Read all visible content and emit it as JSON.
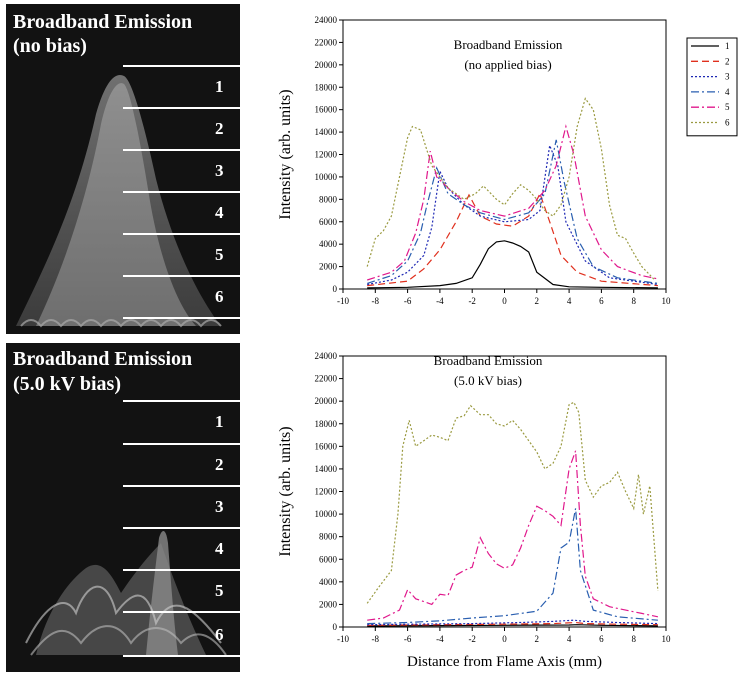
{
  "left_panels": [
    {
      "title_line1": "Broadband Emission",
      "title_line2": "(no bias)",
      "regions": [
        "1",
        "2",
        "3",
        "4",
        "5",
        "6"
      ]
    },
    {
      "title_line1": "Broadband Emission",
      "title_line2": "(5.0 kV bias)",
      "regions": [
        "1",
        "2",
        "3",
        "4",
        "5",
        "6"
      ]
    }
  ],
  "chart_data": [
    {
      "type": "line",
      "title_line1": "Broadband Emission",
      "title_line2": "(no applied bias)",
      "ylabel": "Intensity (arb. units)",
      "xlabel": "",
      "xlim": [
        -10,
        10
      ],
      "ylim": [
        0,
        24000
      ],
      "xticks": [
        -10,
        -8,
        -6,
        -4,
        -2,
        0,
        2,
        4,
        6,
        8,
        10
      ],
      "yticks": [
        0,
        2000,
        4000,
        6000,
        8000,
        10000,
        12000,
        14000,
        16000,
        18000,
        20000,
        22000,
        24000
      ],
      "legend": "top-right",
      "series": [
        {
          "name": "1",
          "color": "#000000",
          "dash": "none",
          "points": [
            [
              -8.5,
              100
            ],
            [
              -6,
              150
            ],
            [
              -4,
              300
            ],
            [
              -3,
              500
            ],
            [
              -2,
              1000
            ],
            [
              -1.5,
              2200
            ],
            [
              -1,
              3600
            ],
            [
              -0.5,
              4200
            ],
            [
              0,
              4300
            ],
            [
              0.5,
              4100
            ],
            [
              1,
              3800
            ],
            [
              1.5,
              3300
            ],
            [
              2,
              1500
            ],
            [
              3,
              400
            ],
            [
              4,
              200
            ],
            [
              6,
              150
            ],
            [
              9.5,
              100
            ]
          ]
        },
        {
          "name": "2",
          "color": "#e0301e",
          "dash": "7,4",
          "points": [
            [
              -8.5,
              300
            ],
            [
              -6,
              700
            ],
            [
              -5,
              1800
            ],
            [
              -4,
              3500
            ],
            [
              -3,
              6000
            ],
            [
              -2.2,
              8400
            ],
            [
              -1.5,
              6500
            ],
            [
              -0.5,
              5800
            ],
            [
              0.5,
              5600
            ],
            [
              1.5,
              6500
            ],
            [
              2.2,
              8500
            ],
            [
              2.8,
              6000
            ],
            [
              3.5,
              3000
            ],
            [
              4.5,
              1500
            ],
            [
              6,
              700
            ],
            [
              9.5,
              300
            ]
          ]
        },
        {
          "name": "3",
          "color": "#1e28b4",
          "dash": "2,2",
          "points": [
            [
              -8.5,
              400
            ],
            [
              -7,
              800
            ],
            [
              -6,
              1500
            ],
            [
              -5,
              3000
            ],
            [
              -4.5,
              5500
            ],
            [
              -4,
              10500
            ],
            [
              -3.5,
              9000
            ],
            [
              -2.5,
              7500
            ],
            [
              -1.5,
              6500
            ],
            [
              0,
              6000
            ],
            [
              1.5,
              6200
            ],
            [
              2.2,
              7000
            ],
            [
              2.8,
              12800
            ],
            [
              3.3,
              11000
            ],
            [
              3.8,
              6000
            ],
            [
              5,
              2500
            ],
            [
              6.5,
              1000
            ],
            [
              9.5,
              400
            ]
          ]
        },
        {
          "name": "4",
          "color": "#2a5fb0",
          "dash": "8,3,2,3",
          "points": [
            [
              -8.5,
              500
            ],
            [
              -7,
              1200
            ],
            [
              -6,
              2500
            ],
            [
              -5.2,
              5000
            ],
            [
              -4.8,
              7500
            ],
            [
              -4.2,
              10800
            ],
            [
              -3.5,
              8500
            ],
            [
              -2.5,
              7500
            ],
            [
              -1.5,
              6800
            ],
            [
              0,
              6200
            ],
            [
              1.5,
              6800
            ],
            [
              2.5,
              8500
            ],
            [
              3.2,
              13300
            ],
            [
              3.7,
              9500
            ],
            [
              4.5,
              4500
            ],
            [
              5.5,
              2000
            ],
            [
              7,
              1000
            ],
            [
              9.5,
              500
            ]
          ]
        },
        {
          "name": "5",
          "color": "#e0188c",
          "dash": "8,3,2,3",
          "points": [
            [
              -8.5,
              800
            ],
            [
              -7,
              1500
            ],
            [
              -6.2,
              2500
            ],
            [
              -5.5,
              5000
            ],
            [
              -5,
              8000
            ],
            [
              -4.6,
              12300
            ],
            [
              -4.2,
              10000
            ],
            [
              -3.5,
              9000
            ],
            [
              -2.5,
              7800
            ],
            [
              -1.5,
              7000
            ],
            [
              0,
              6500
            ],
            [
              1.5,
              7200
            ],
            [
              2.5,
              8800
            ],
            [
              3.2,
              11000
            ],
            [
              3.8,
              14500
            ],
            [
              4.3,
              12000
            ],
            [
              5,
              6500
            ],
            [
              6,
              3500
            ],
            [
              7,
              2000
            ],
            [
              8.5,
              1200
            ],
            [
              9.5,
              900
            ]
          ]
        },
        {
          "name": "6",
          "color": "#9a9a40",
          "dash": "2,2",
          "points": [
            [
              -8.5,
              2000
            ],
            [
              -8,
              4500
            ],
            [
              -7.5,
              5200
            ],
            [
              -7,
              6500
            ],
            [
              -6.5,
              10000
            ],
            [
              -6,
              13500
            ],
            [
              -5.7,
              14500
            ],
            [
              -5.2,
              14200
            ],
            [
              -4.5,
              11000
            ],
            [
              -3.5,
              9000
            ],
            [
              -2.5,
              8000
            ],
            [
              -1.8,
              8500
            ],
            [
              -1.3,
              9200
            ],
            [
              -0.5,
              8000
            ],
            [
              0,
              7500
            ],
            [
              0.5,
              8500
            ],
            [
              1,
              9300
            ],
            [
              1.5,
              8800
            ],
            [
              2,
              8000
            ],
            [
              2.5,
              7000
            ],
            [
              3,
              6500
            ],
            [
              3.5,
              7500
            ],
            [
              4,
              10000
            ],
            [
              4.5,
              14500
            ],
            [
              5,
              17000
            ],
            [
              5.5,
              16000
            ],
            [
              6,
              12500
            ],
            [
              6.5,
              7500
            ],
            [
              7,
              4800
            ],
            [
              7.5,
              4500
            ],
            [
              8,
              3200
            ],
            [
              8.5,
              2000
            ],
            [
              9.3,
              800
            ]
          ]
        }
      ]
    },
    {
      "type": "line",
      "title_line1": "Broadband Emission",
      "title_line2": "(5.0 kV bias)",
      "ylabel": "Intensity (arb. units)",
      "xlabel": "Distance from Flame Axis (mm)",
      "xlim": [
        -10,
        10
      ],
      "ylim": [
        0,
        24000
      ],
      "xticks": [
        -10,
        -8,
        -6,
        -4,
        -2,
        0,
        2,
        4,
        6,
        8,
        10
      ],
      "yticks": [
        0,
        2000,
        4000,
        6000,
        8000,
        10000,
        12000,
        14000,
        16000,
        18000,
        20000,
        22000,
        24000
      ],
      "legend": "none",
      "series": [
        {
          "name": "1",
          "color": "#000000",
          "dash": "none",
          "points": [
            [
              -8.5,
              100
            ],
            [
              -4,
              120
            ],
            [
              0,
              150
            ],
            [
              4,
              180
            ],
            [
              4.5,
              200
            ],
            [
              6,
              150
            ],
            [
              9.5,
              100
            ]
          ]
        },
        {
          "name": "2",
          "color": "#e0301e",
          "dash": "7,4",
          "points": [
            [
              -8.5,
              150
            ],
            [
              -4,
              200
            ],
            [
              0,
              250
            ],
            [
              3,
              300
            ],
            [
              4.4,
              400
            ],
            [
              5,
              300
            ],
            [
              7,
              250
            ],
            [
              9.5,
              200
            ]
          ]
        },
        {
          "name": "3",
          "color": "#1e28b4",
          "dash": "2,2",
          "points": [
            [
              -8.5,
              200
            ],
            [
              -6,
              250
            ],
            [
              -2,
              300
            ],
            [
              1,
              400
            ],
            [
              3,
              500
            ],
            [
              4.3,
              600
            ],
            [
              5,
              500
            ],
            [
              7,
              400
            ],
            [
              9.5,
              300
            ]
          ]
        },
        {
          "name": "4",
          "color": "#2a5fb0",
          "dash": "8,3,2,3",
          "points": [
            [
              -8.5,
              300
            ],
            [
              -6,
              400
            ],
            [
              -4,
              550
            ],
            [
              -2,
              800
            ],
            [
              0,
              1000
            ],
            [
              2,
              1400
            ],
            [
              3,
              3000
            ],
            [
              3.5,
              7000
            ],
            [
              4,
              7500
            ],
            [
              4.4,
              10500
            ],
            [
              4.7,
              5000
            ],
            [
              5.5,
              1500
            ],
            [
              7,
              900
            ],
            [
              9.5,
              600
            ]
          ]
        },
        {
          "name": "5",
          "color": "#e0188c",
          "dash": "8,3,2,3",
          "points": [
            [
              -8.5,
              600
            ],
            [
              -7.5,
              800
            ],
            [
              -6.5,
              1500
            ],
            [
              -6,
              3300
            ],
            [
              -5.5,
              2500
            ],
            [
              -4.5,
              2000
            ],
            [
              -4,
              2900
            ],
            [
              -3.5,
              2800
            ],
            [
              -3,
              4600
            ],
            [
              -2.5,
              5000
            ],
            [
              -2,
              5300
            ],
            [
              -1.5,
              7900
            ],
            [
              -1,
              6500
            ],
            [
              -0.5,
              5600
            ],
            [
              0,
              5200
            ],
            [
              0.5,
              5500
            ],
            [
              1,
              7000
            ],
            [
              1.5,
              9000
            ],
            [
              2,
              10700
            ],
            [
              2.5,
              10300
            ],
            [
              3,
              9800
            ],
            [
              3.5,
              9000
            ],
            [
              4,
              14000
            ],
            [
              4.4,
              15600
            ],
            [
              4.7,
              9000
            ],
            [
              5,
              4500
            ],
            [
              5.5,
              2500
            ],
            [
              6.5,
              1800
            ],
            [
              7.5,
              1500
            ],
            [
              8.5,
              1200
            ],
            [
              9.5,
              900
            ]
          ]
        },
        {
          "name": "6",
          "color": "#9a9a40",
          "dash": "2,2",
          "points": [
            [
              -8.5,
              2100
            ],
            [
              -7.8,
              3500
            ],
            [
              -7,
              5000
            ],
            [
              -6.6,
              10000
            ],
            [
              -6.3,
              16000
            ],
            [
              -5.9,
              18300
            ],
            [
              -5.5,
              16000
            ],
            [
              -5,
              16500
            ],
            [
              -4.5,
              17000
            ],
            [
              -4,
              16800
            ],
            [
              -3.5,
              16500
            ],
            [
              -3,
              18500
            ],
            [
              -2.5,
              18700
            ],
            [
              -2.1,
              19600
            ],
            [
              -1.5,
              18800
            ],
            [
              -1,
              18800
            ],
            [
              -0.5,
              18000
            ],
            [
              0,
              17800
            ],
            [
              0.5,
              18300
            ],
            [
              1,
              17500
            ],
            [
              1.5,
              16500
            ],
            [
              2,
              15500
            ],
            [
              2.5,
              14000
            ],
            [
              3,
              14500
            ],
            [
              3.5,
              16000
            ],
            [
              4,
              19700
            ],
            [
              4.3,
              19900
            ],
            [
              4.6,
              19000
            ],
            [
              5,
              13000
            ],
            [
              5.5,
              11500
            ],
            [
              6,
              12500
            ],
            [
              6.5,
              12800
            ],
            [
              7,
              13700
            ],
            [
              7.5,
              12000
            ],
            [
              8,
              10500
            ],
            [
              8.3,
              13500
            ],
            [
              8.6,
              10000
            ],
            [
              9,
              12500
            ],
            [
              9.5,
              3200
            ]
          ]
        }
      ]
    }
  ]
}
